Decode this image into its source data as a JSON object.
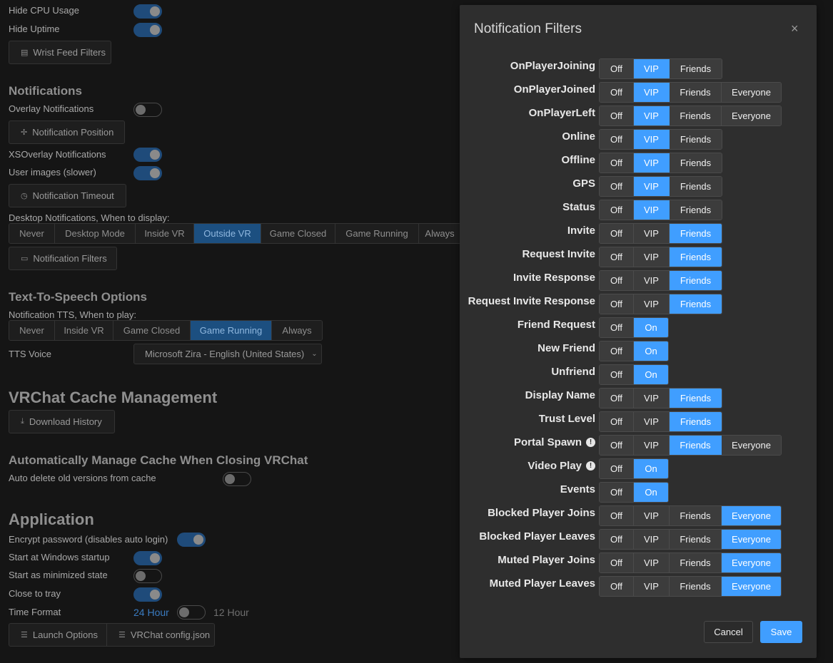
{
  "left": {
    "wrist": {
      "hide_cpu": {
        "label": "Hide CPU Usage",
        "on": true
      },
      "hide_uptime": {
        "label": "Hide Uptime",
        "on": true
      },
      "filters_button": "Wrist Feed Filters"
    },
    "notifications": {
      "heading": "Notifications",
      "overlay": {
        "label": "Overlay Notifications",
        "on": false
      },
      "position_button": "Notification Position",
      "xsoverlay": {
        "label": "XSOverlay Notifications",
        "on": true
      },
      "user_images": {
        "label": "User images (slower)",
        "on": true
      },
      "timeout_button": "Notification Timeout",
      "desktop_label": "Desktop Notifications, When to display:",
      "desktop_options": [
        "Never",
        "Desktop Mode",
        "Inside VR",
        "Outside VR",
        "Game Closed",
        "Game Running",
        "Always"
      ],
      "desktop_selected": "Outside VR",
      "filters_button": "Notification Filters"
    },
    "tts": {
      "heading": "Text-To-Speech Options",
      "when_label": "Notification TTS, When to play:",
      "options": [
        "Never",
        "Inside VR",
        "Game Closed",
        "Game Running",
        "Always"
      ],
      "selected": "Game Running",
      "voice_label": "TTS Voice",
      "voice_value": "Microsoft Zira - English (United States)"
    },
    "cache": {
      "heading": "VRChat Cache Management",
      "download_button": "Download History",
      "auto_heading": "Automatically Manage Cache When Closing VRChat",
      "auto_delete": {
        "label": "Auto delete old versions from cache",
        "on": false
      }
    },
    "application": {
      "heading": "Application",
      "encrypt": {
        "label": "Encrypt password (disables auto login)",
        "on": true
      },
      "startup": {
        "label": "Start at Windows startup",
        "on": true
      },
      "minimized": {
        "label": "Start as minimized state",
        "on": false
      },
      "tray": {
        "label": "Close to tray",
        "on": true
      },
      "time_format": {
        "label": "Time Format",
        "left": "24 Hour",
        "right": "12 Hour",
        "twelve_hour": false
      },
      "launch_button": "Launch Options",
      "config_button": "VRChat config.json"
    }
  },
  "dialog": {
    "title": "Notification Filters",
    "close_icon": "×",
    "cancel": "Cancel",
    "save": "Save",
    "accent": "#409eff",
    "filters": [
      {
        "name": "OnPlayerJoining",
        "options": [
          "Off",
          "VIP",
          "Friends"
        ],
        "selected": "VIP"
      },
      {
        "name": "OnPlayerJoined",
        "options": [
          "Off",
          "VIP",
          "Friends",
          "Everyone"
        ],
        "selected": "VIP"
      },
      {
        "name": "OnPlayerLeft",
        "options": [
          "Off",
          "VIP",
          "Friends",
          "Everyone"
        ],
        "selected": "VIP"
      },
      {
        "name": "Online",
        "options": [
          "Off",
          "VIP",
          "Friends"
        ],
        "selected": "VIP"
      },
      {
        "name": "Offline",
        "options": [
          "Off",
          "VIP",
          "Friends"
        ],
        "selected": "VIP"
      },
      {
        "name": "GPS",
        "options": [
          "Off",
          "VIP",
          "Friends"
        ],
        "selected": "VIP"
      },
      {
        "name": "Status",
        "options": [
          "Off",
          "VIP",
          "Friends"
        ],
        "selected": "VIP"
      },
      {
        "name": "Invite",
        "options": [
          "Off",
          "VIP",
          "Friends"
        ],
        "selected": "Friends"
      },
      {
        "name": "Request Invite",
        "options": [
          "Off",
          "VIP",
          "Friends"
        ],
        "selected": "Friends"
      },
      {
        "name": "Invite Response",
        "options": [
          "Off",
          "VIP",
          "Friends"
        ],
        "selected": "Friends"
      },
      {
        "name": "Request Invite Response",
        "options": [
          "Off",
          "VIP",
          "Friends"
        ],
        "selected": "Friends"
      },
      {
        "name": "Friend Request",
        "options": [
          "Off",
          "On"
        ],
        "selected": "On"
      },
      {
        "name": "New Friend",
        "options": [
          "Off",
          "On"
        ],
        "selected": "On"
      },
      {
        "name": "Unfriend",
        "options": [
          "Off",
          "On"
        ],
        "selected": "On"
      },
      {
        "name": "Display Name",
        "options": [
          "Off",
          "VIP",
          "Friends"
        ],
        "selected": "Friends"
      },
      {
        "name": "Trust Level",
        "options": [
          "Off",
          "VIP",
          "Friends"
        ],
        "selected": "Friends"
      },
      {
        "name": "Portal Spawn",
        "warn": true,
        "options": [
          "Off",
          "VIP",
          "Friends",
          "Everyone"
        ],
        "selected": "Friends"
      },
      {
        "name": "Video Play",
        "warn": true,
        "options": [
          "Off",
          "On"
        ],
        "selected": "On"
      },
      {
        "name": "Events",
        "options": [
          "Off",
          "On"
        ],
        "selected": "On"
      },
      {
        "name": "Blocked Player Joins",
        "options": [
          "Off",
          "VIP",
          "Friends",
          "Everyone"
        ],
        "selected": "Everyone"
      },
      {
        "name": "Blocked Player Leaves",
        "options": [
          "Off",
          "VIP",
          "Friends",
          "Everyone"
        ],
        "selected": "Everyone"
      },
      {
        "name": "Muted Player Joins",
        "options": [
          "Off",
          "VIP",
          "Friends",
          "Everyone"
        ],
        "selected": "Everyone"
      },
      {
        "name": "Muted Player Leaves",
        "options": [
          "Off",
          "VIP",
          "Friends",
          "Everyone"
        ],
        "selected": "Everyone"
      }
    ]
  }
}
